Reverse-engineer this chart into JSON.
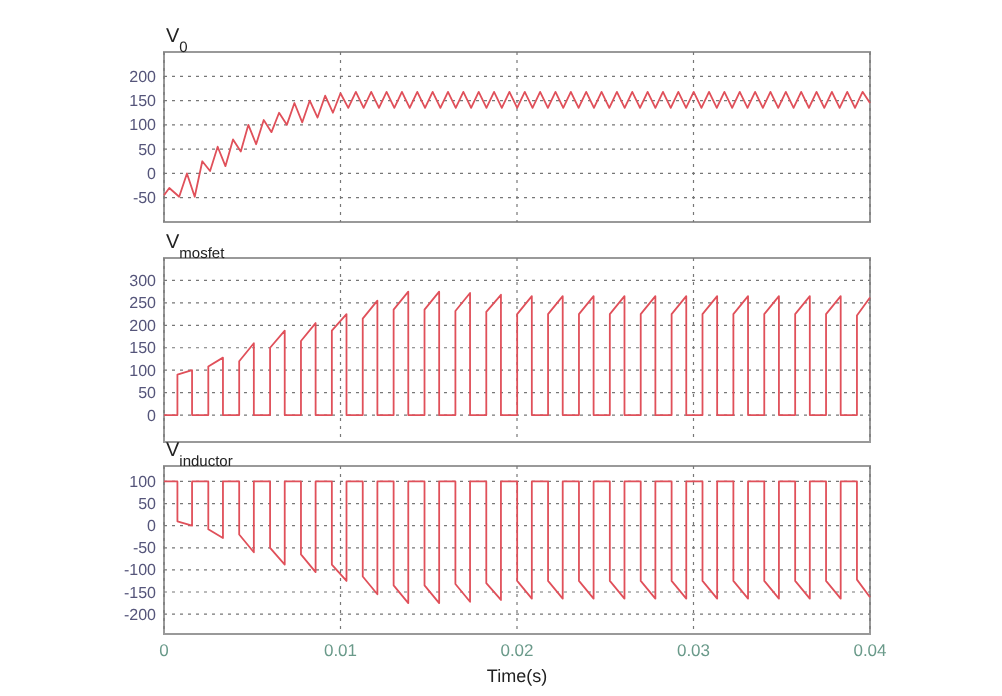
{
  "chart_data": [
    {
      "type": "line",
      "title": "V$_{0}$",
      "xlim": [
        0,
        0.04
      ],
      "xticks": [
        0,
        0.01,
        0.02,
        0.03,
        0.04
      ],
      "ylim": [
        -100,
        250
      ],
      "yticks": [
        -50,
        0,
        50,
        100,
        150,
        200
      ],
      "grid": true,
      "tick_labels": "y",
      "series": [
        {
          "color": "#e0505a",
          "x": [
            0,
            0.0003,
            0.00086,
            0.0013,
            0.00174,
            0.00217,
            0.00261,
            0.00304,
            0.00348,
            0.00391,
            0.00435,
            0.00478,
            0.00522,
            0.00565,
            0.00609,
            0.00652,
            0.00696,
            0.00739,
            0.00783,
            0.00826,
            0.0087,
            0.00913,
            0.00957,
            0.01,
            0.01044,
            0.01087,
            0.01131,
            0.01174,
            0.01218,
            0.01261,
            0.01305,
            0.01348,
            0.01392,
            0.01435,
            0.01479,
            0.01522,
            0.01566,
            0.01609,
            0.01653,
            0.01696,
            0.0174,
            0.01783,
            0.01827,
            0.0187,
            0.01914,
            0.01957,
            0.02001,
            0.02044,
            0.02088,
            0.02131,
            0.02175,
            0.02218,
            0.02262,
            0.02305,
            0.02349,
            0.02392,
            0.02436,
            0.02479,
            0.02523,
            0.02566,
            0.0261,
            0.02653,
            0.02697,
            0.0274,
            0.02784,
            0.02827,
            0.02871,
            0.02914,
            0.02958,
            0.03001,
            0.03045,
            0.03088,
            0.03132,
            0.03175,
            0.03219,
            0.03262,
            0.03306,
            0.03349,
            0.03393,
            0.03436,
            0.0348,
            0.03523,
            0.03567,
            0.0361,
            0.03654,
            0.03697,
            0.03741,
            0.03784,
            0.03828,
            0.03871,
            0.03915,
            0.03958,
            0.04
          ],
          "values": [
            -45,
            -30,
            -48,
            0,
            -48,
            25,
            5,
            55,
            15,
            70,
            45,
            100,
            60,
            110,
            85,
            125,
            100,
            145,
            105,
            150,
            115,
            160,
            125,
            165,
            135,
            168,
            135,
            168,
            135,
            168,
            135,
            168,
            135,
            168,
            135,
            168,
            135,
            168,
            135,
            168,
            135,
            168,
            135,
            168,
            135,
            168,
            135,
            168,
            135,
            168,
            135,
            168,
            135,
            168,
            135,
            168,
            135,
            168,
            135,
            168,
            135,
            168,
            135,
            168,
            135,
            168,
            135,
            168,
            135,
            168,
            135,
            168,
            135,
            168,
            135,
            168,
            135,
            168,
            135,
            168,
            135,
            168,
            135,
            168,
            135,
            168,
            135,
            168,
            135,
            168,
            135,
            168,
            145
          ]
        }
      ]
    },
    {
      "type": "line",
      "title": "V$_{mosfet}$",
      "xlim": [
        0,
        0.04
      ],
      "xticks": [
        0,
        0.01,
        0.02,
        0.03,
        0.04
      ],
      "ylim": [
        -60,
        350
      ],
      "yticks": [
        0,
        50,
        100,
        150,
        200,
        250,
        300
      ],
      "grid": true,
      "tick_labels": "y",
      "series": [
        {
          "color": "#e0505a",
          "x": [
            0,
            0.00076,
            0.00076,
            0.00159,
            0.00159,
            0.00251,
            0.00251,
            0.00334,
            0.00334,
            0.00426,
            0.00426,
            0.00509,
            0.00509,
            0.00601,
            0.00601,
            0.00684,
            0.00684,
            0.00776,
            0.00776,
            0.00859,
            0.00859,
            0.00951,
            0.00951,
            0.01034,
            0.01034,
            0.01126,
            0.01126,
            0.01209,
            0.01209,
            0.01301,
            0.01301,
            0.01384,
            0.01384,
            0.01476,
            0.01476,
            0.01559,
            0.01559,
            0.01651,
            0.01651,
            0.01734,
            0.01734,
            0.01826,
            0.01826,
            0.01909,
            0.01909,
            0.02001,
            0.02001,
            0.02084,
            0.02084,
            0.02176,
            0.02176,
            0.02259,
            0.02259,
            0.02351,
            0.02351,
            0.02434,
            0.02434,
            0.02526,
            0.02526,
            0.02609,
            0.02609,
            0.02701,
            0.02701,
            0.02784,
            0.02784,
            0.02876,
            0.02876,
            0.02959,
            0.02959,
            0.03051,
            0.03051,
            0.03134,
            0.03134,
            0.03226,
            0.03226,
            0.03309,
            0.03309,
            0.03401,
            0.03401,
            0.03484,
            0.03484,
            0.03576,
            0.03576,
            0.03659,
            0.03659,
            0.03751,
            0.03751,
            0.03834,
            0.03834,
            0.03926,
            0.03926,
            0.04
          ],
          "values": [
            0,
            0,
            90,
            100,
            0,
            0,
            108,
            128,
            0,
            0,
            120,
            160,
            0,
            0,
            150,
            188,
            0,
            0,
            165,
            205,
            0,
            0,
            188,
            225,
            0,
            0,
            215,
            255,
            0,
            0,
            235,
            275,
            0,
            0,
            235,
            275,
            0,
            0,
            232,
            272,
            0,
            0,
            230,
            268,
            0,
            0,
            225,
            265,
            0,
            0,
            225,
            265,
            0,
            0,
            225,
            265,
            0,
            0,
            225,
            265,
            0,
            0,
            225,
            265,
            0,
            0,
            225,
            265,
            0,
            0,
            225,
            265,
            0,
            0,
            225,
            265,
            0,
            0,
            225,
            265,
            0,
            0,
            225,
            265,
            0,
            0,
            225,
            265,
            0,
            0,
            222,
            262
          ]
        }
      ]
    },
    {
      "type": "line",
      "title": "V$_{inductor}$",
      "xlabel": "Time(s)",
      "xlim": [
        0,
        0.04
      ],
      "xticks": [
        0,
        0.01,
        0.02,
        0.03,
        0.04
      ],
      "ylim": [
        -245,
        135
      ],
      "yticks": [
        -200,
        -150,
        -100,
        -50,
        0,
        50,
        100
      ],
      "grid": true,
      "series": [
        {
          "color": "#e0505a",
          "x": [
            0,
            0.00076,
            0.00076,
            0.00159,
            0.00159,
            0.00251,
            0.00251,
            0.00334,
            0.00334,
            0.00426,
            0.00426,
            0.00509,
            0.00509,
            0.00601,
            0.00601,
            0.00684,
            0.00684,
            0.00776,
            0.00776,
            0.00859,
            0.00859,
            0.00951,
            0.00951,
            0.01034,
            0.01034,
            0.01126,
            0.01126,
            0.01209,
            0.01209,
            0.01301,
            0.01301,
            0.01384,
            0.01384,
            0.01476,
            0.01476,
            0.01559,
            0.01559,
            0.01651,
            0.01651,
            0.01734,
            0.01734,
            0.01826,
            0.01826,
            0.01909,
            0.01909,
            0.02001,
            0.02001,
            0.02084,
            0.02084,
            0.02176,
            0.02176,
            0.02259,
            0.02259,
            0.02351,
            0.02351,
            0.02434,
            0.02434,
            0.02526,
            0.02526,
            0.02609,
            0.02609,
            0.02701,
            0.02701,
            0.02784,
            0.02784,
            0.02876,
            0.02876,
            0.02959,
            0.02959,
            0.03051,
            0.03051,
            0.03134,
            0.03134,
            0.03226,
            0.03226,
            0.03309,
            0.03309,
            0.03401,
            0.03401,
            0.03484,
            0.03484,
            0.03576,
            0.03576,
            0.03659,
            0.03659,
            0.03751,
            0.03751,
            0.03834,
            0.03834,
            0.03926,
            0.03926,
            0.04
          ],
          "values": [
            100,
            100,
            10,
            0,
            100,
            100,
            -8,
            -28,
            100,
            100,
            -20,
            -60,
            100,
            100,
            -50,
            -88,
            100,
            100,
            -65,
            -105,
            100,
            100,
            -88,
            -125,
            100,
            100,
            -115,
            -155,
            100,
            100,
            -135,
            -175,
            100,
            100,
            -135,
            -175,
            100,
            100,
            -132,
            -172,
            100,
            100,
            -130,
            -168,
            100,
            100,
            -125,
            -165,
            100,
            100,
            -125,
            -165,
            100,
            100,
            -125,
            -165,
            100,
            100,
            -125,
            -165,
            100,
            100,
            -125,
            -165,
            100,
            100,
            -125,
            -165,
            100,
            100,
            -125,
            -165,
            100,
            100,
            -125,
            -165,
            100,
            100,
            -125,
            -165,
            100,
            100,
            -125,
            -165,
            100,
            100,
            -125,
            -165,
            100,
            100,
            -122,
            -162
          ]
        }
      ]
    }
  ]
}
